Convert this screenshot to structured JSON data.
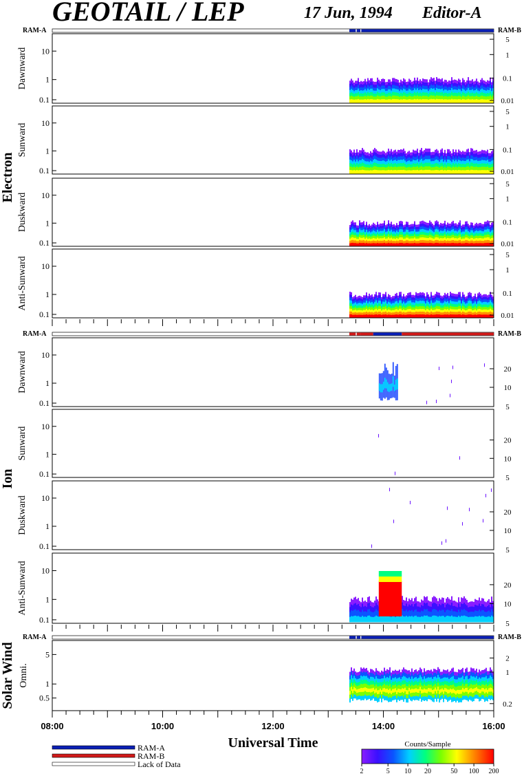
{
  "header": {
    "title": "GEOTAIL / LEP",
    "date": "17 Jun, 1994",
    "editor": "Editor-A"
  },
  "colors": {
    "ram_a": "#0a1fb5",
    "ram_b": "#d11a1a",
    "lack": "#ffffff"
  },
  "chart_data": {
    "type": "heatmap",
    "xlabel": "Universal Time",
    "x_range": [
      "08:00",
      "16:00"
    ],
    "x_ticks": [
      "08:00",
      "10:00",
      "12:00",
      "14:00",
      "16:00"
    ],
    "data_start": "13:23",
    "groups": [
      {
        "name": "Electron",
        "ram_labels": [
          "RAM-A",
          "RAM-B"
        ],
        "ram_bar": [
          {
            "from": "13:23",
            "to": "13:30",
            "state": "ram_a"
          },
          {
            "from": "13:30",
            "to": "13:31",
            "state": "lack"
          },
          {
            "from": "13:31",
            "to": "13:35",
            "state": "ram_a"
          },
          {
            "from": "13:35",
            "to": "13:36",
            "state": "lack"
          },
          {
            "from": "13:36",
            "to": "16:00",
            "state": "ram_a"
          }
        ],
        "panels": [
          {
            "label": "Dawnward",
            "left_ticks": [
              "10",
              "1",
              "0.1"
            ],
            "right_ticks": [
              "5",
              "1",
              "0.1",
              "0.01"
            ]
          },
          {
            "label": "Sunward",
            "left_ticks": [
              "10",
              "1",
              "0.1"
            ],
            "right_ticks": [
              "5",
              "1",
              "0.1",
              "0.01"
            ]
          },
          {
            "label": "Duskward",
            "left_ticks": [
              "10",
              "1",
              "0.1"
            ],
            "right_ticks": [
              "5",
              "1",
              "0.1",
              "0.01"
            ]
          },
          {
            "label": "Anti-Sunward",
            "left_ticks": [
              "10",
              "1",
              "0.1"
            ],
            "right_ticks": [
              "5",
              "1",
              "0.1",
              "0.01"
            ]
          }
        ]
      },
      {
        "name": "Ion",
        "ram_labels": [
          "RAM-A",
          "RAM-B"
        ],
        "ram_bar": [
          {
            "from": "13:23",
            "to": "13:30",
            "state": "ram_b"
          },
          {
            "from": "13:30",
            "to": "13:31",
            "state": "lack"
          },
          {
            "from": "13:31",
            "to": "13:35",
            "state": "ram_b"
          },
          {
            "from": "13:35",
            "to": "13:49",
            "state": "ram_b"
          },
          {
            "from": "13:49",
            "to": "14:20",
            "state": "ram_a"
          },
          {
            "from": "14:20",
            "to": "16:00",
            "state": "ram_b"
          }
        ],
        "panels": [
          {
            "label": "Dawnward",
            "left_ticks": [
              "10",
              "1",
              "0.1"
            ],
            "right_ticks": [
              "20",
              "10",
              "5"
            ]
          },
          {
            "label": "Sunward",
            "left_ticks": [
              "10",
              "1",
              "0.1"
            ],
            "right_ticks": [
              "20",
              "10",
              "5"
            ]
          },
          {
            "label": "Duskward",
            "left_ticks": [
              "10",
              "1",
              "0.1"
            ],
            "right_ticks": [
              "20",
              "10",
              "5"
            ]
          },
          {
            "label": "Anti-Sunward",
            "left_ticks": [
              "10",
              "1",
              "0.1"
            ],
            "right_ticks": [
              "20",
              "10",
              "5"
            ]
          }
        ]
      },
      {
        "name": "Solar Wind",
        "ram_labels": [
          "RAM-A",
          "RAM-B"
        ],
        "ram_bar": [
          {
            "from": "13:23",
            "to": "13:30",
            "state": "ram_a"
          },
          {
            "from": "13:30",
            "to": "13:31",
            "state": "lack"
          },
          {
            "from": "13:31",
            "to": "13:35",
            "state": "ram_a"
          },
          {
            "from": "13:35",
            "to": "13:36",
            "state": "lack"
          },
          {
            "from": "13:36",
            "to": "16:00",
            "state": "ram_a"
          }
        ],
        "panels": [
          {
            "label": "Omni.",
            "left_ticks": [
              "5",
              "1",
              "0.5"
            ],
            "right_ticks": [
              "2",
              "1",
              "0.2"
            ]
          }
        ]
      }
    ],
    "legend": {
      "items": [
        "RAM-A",
        "RAM-B",
        "Lack of Data"
      ]
    },
    "colorbar": {
      "title": "Counts/Sample",
      "ticks": [
        "2",
        "5",
        "10",
        "20",
        "50",
        "100",
        "200"
      ]
    }
  }
}
